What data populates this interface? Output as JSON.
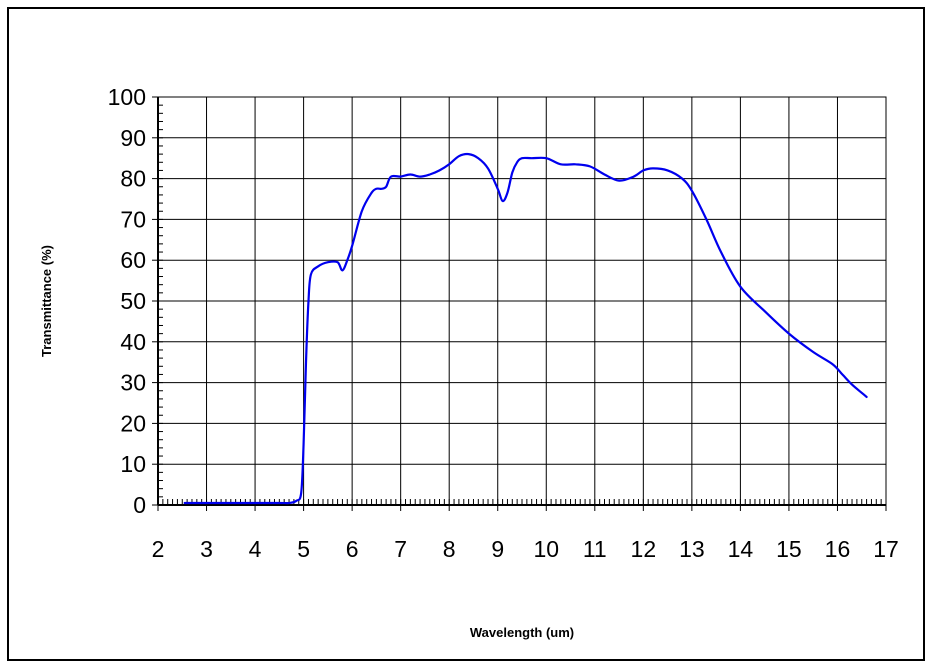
{
  "chart_data": {
    "type": "line",
    "title": "",
    "xlabel": "Wavelength (um)",
    "ylabel": "Transmittance (%)",
    "xlim": [
      2,
      17
    ],
    "ylim": [
      0,
      100
    ],
    "x_ticks": [
      2,
      3,
      4,
      5,
      6,
      7,
      8,
      9,
      10,
      11,
      12,
      13,
      14,
      15,
      16,
      17
    ],
    "y_ticks": [
      0,
      10,
      20,
      30,
      40,
      50,
      60,
      70,
      80,
      90,
      100
    ],
    "grid": true,
    "legend": "none",
    "line_color": "#0000ee",
    "series": [
      {
        "x": [
          2.55,
          3.0,
          3.5,
          4.0,
          4.5,
          4.7,
          4.85,
          4.95,
          5.0,
          5.05,
          5.1,
          5.15,
          5.3,
          5.5,
          5.7,
          5.8,
          5.9,
          6.0,
          6.2,
          6.4,
          6.5,
          6.6,
          6.7,
          6.8,
          7.0,
          7.2,
          7.4,
          7.6,
          7.8,
          8.0,
          8.2,
          8.4,
          8.6,
          8.8,
          9.0,
          9.1,
          9.2,
          9.3,
          9.4,
          9.5,
          9.7,
          10.0,
          10.3,
          10.6,
          10.9,
          11.2,
          11.5,
          11.8,
          12.0,
          12.2,
          12.5,
          12.8,
          13.0,
          13.3,
          13.6,
          14.0,
          14.5,
          15.0,
          15.5,
          15.9,
          16.1,
          16.3,
          16.5,
          16.6
        ],
        "y": [
          0.5,
          0.5,
          0.5,
          0.5,
          0.5,
          0.5,
          1.0,
          3.0,
          15.0,
          35.0,
          50.0,
          56.5,
          58.5,
          59.5,
          59.5,
          57.5,
          60.0,
          63.5,
          72.0,
          76.5,
          77.5,
          77.5,
          78.0,
          80.5,
          80.5,
          81.0,
          80.5,
          81.0,
          82.0,
          83.5,
          85.5,
          86.0,
          85.0,
          82.5,
          77.5,
          74.5,
          76.5,
          81.5,
          84.0,
          85.0,
          85.0,
          85.0,
          83.5,
          83.5,
          83.0,
          81.0,
          79.5,
          80.5,
          82.0,
          82.5,
          82.0,
          80.0,
          77.0,
          70.0,
          62.0,
          53.5,
          47.5,
          42.0,
          37.5,
          34.5,
          32.0,
          29.5,
          27.5,
          26.5
        ]
      }
    ]
  }
}
